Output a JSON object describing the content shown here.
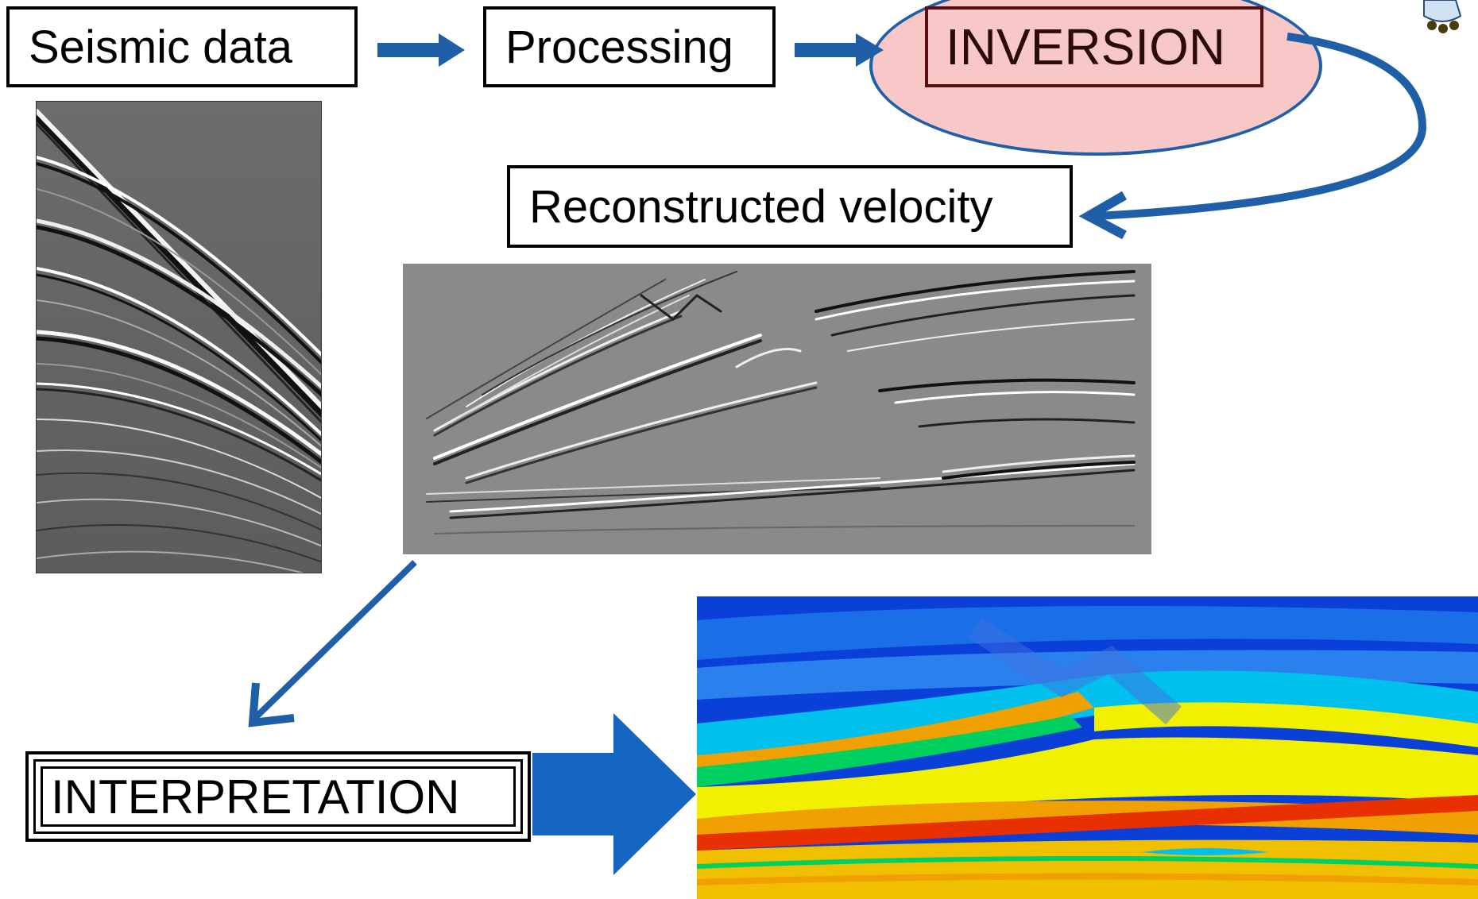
{
  "labels": {
    "seismic_data": "Seismic data",
    "processing": "Processing",
    "inversion": "INVERSION",
    "reconstructed_velocity": "Reconstructed velocity",
    "interpretation": "INTERPRETATION"
  },
  "colors": {
    "arrow_blue": "#1f5fa8",
    "inversion_fill": "#f8c8c8",
    "inversion_border": "#5a1010"
  },
  "images": {
    "shot_gather": "seismic-shot-gather-grayscale",
    "migrated_section": "migrated-seismic-section-grayscale",
    "velocity_model": "interpreted-velocity-model-colormap"
  },
  "velocity_colormap": [
    "#0a3fd8",
    "#1a7fe8",
    "#00c8f0",
    "#00d060",
    "#f0f000",
    "#f0a000",
    "#e84000"
  ]
}
